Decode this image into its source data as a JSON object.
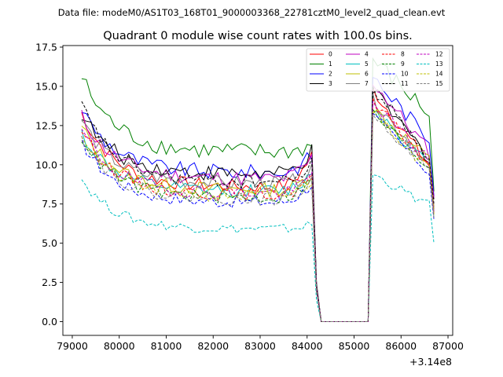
{
  "chart_data": {
    "type": "line",
    "suptitle": "Data file: modeM0/AS1T03_168T01_9000003368_22781cztM0_level2_quad_clean.evt",
    "title": "Quadrant 0 module wise count rates with 100.0s bins.",
    "xlabel": "",
    "ylabel": "",
    "x_offset_label": "+3.14e8",
    "xlim": [
      78800,
      87100
    ],
    "ylim": [
      -0.875,
      17.6
    ],
    "x_ticks": [
      79000,
      80000,
      81000,
      82000,
      83000,
      84000,
      85000,
      86000,
      87000
    ],
    "x_tick_labels": [
      "79000",
      "80000",
      "81000",
      "82000",
      "83000",
      "84000",
      "85000",
      "86000",
      "87000"
    ],
    "y_ticks": [
      0,
      2.5,
      5,
      7.5,
      10,
      12.5,
      15,
      17.5
    ],
    "y_tick_labels": [
      "0.0",
      "2.5",
      "5.0",
      "7.5",
      "10.0",
      "12.5",
      "15.0",
      "17.5"
    ],
    "bin_width_s": 100,
    "segments": [
      {
        "x_start": 79200,
        "x_end": 84100
      },
      {
        "x_start": 84200,
        "x_end": 85300
      },
      {
        "x_start": 85400,
        "x_end": 86700
      }
    ],
    "legend_position": "top-right",
    "series": [
      {
        "name": "0",
        "color": "#ff0000",
        "dash": "solid",
        "start": 13.3,
        "level": 8.6,
        "gap_end": 10.6,
        "post_start": 14.8,
        "post_end": 9.9,
        "end": 7.3
      },
      {
        "name": "1",
        "color": "#008000",
        "dash": "solid",
        "start": 15.6,
        "level": 10.8,
        "gap_end": 11.2,
        "post_start": 16.7,
        "post_end": 13.2,
        "end": 8.3
      },
      {
        "name": "2",
        "color": "#0000ff",
        "dash": "solid",
        "start": 13.6,
        "level": 9.5,
        "gap_end": 10.6,
        "post_start": 15.6,
        "post_end": 11.6,
        "end": 8.0
      },
      {
        "name": "3",
        "color": "#000000",
        "dash": "solid",
        "start": 13.3,
        "level": 9.4,
        "gap_end": 10.8,
        "post_start": 14.7,
        "post_end": 10.4,
        "end": 7.8
      },
      {
        "name": "4",
        "color": "#bf00bf",
        "dash": "solid",
        "start": 13.1,
        "level": 9.1,
        "gap_end": 10.4,
        "post_start": 15.3,
        "post_end": 10.8,
        "end": 7.9
      },
      {
        "name": "5",
        "color": "#00bfbf",
        "dash": "solid",
        "start": 12.0,
        "level": 8.3,
        "gap_end": 9.4,
        "post_start": 13.7,
        "post_end": 9.9,
        "end": 7.2
      },
      {
        "name": "6",
        "color": "#bfbf00",
        "dash": "solid",
        "start": 12.4,
        "level": 8.4,
        "gap_end": 9.4,
        "post_start": 13.6,
        "post_end": 10.3,
        "end": 7.2
      },
      {
        "name": "7",
        "color": "#808080",
        "dash": "solid",
        "start": 12.9,
        "level": 8.8,
        "gap_end": 9.6,
        "post_start": 14.1,
        "post_end": 10.1,
        "end": 7.0
      },
      {
        "name": "8",
        "color": "#ff0000",
        "dash": "dashed",
        "start": 12.3,
        "level": 8.1,
        "gap_end": 9.2,
        "post_start": 13.9,
        "post_end": 10.0,
        "end": 6.8
      },
      {
        "name": "9",
        "color": "#008000",
        "dash": "dashed",
        "start": 11.8,
        "level": 7.9,
        "gap_end": 9.0,
        "post_start": 13.3,
        "post_end": 9.8,
        "end": 6.7
      },
      {
        "name": "10",
        "color": "#0000ff",
        "dash": "dashed",
        "start": 11.5,
        "level": 7.6,
        "gap_end": 8.8,
        "post_start": 13.1,
        "post_end": 9.5,
        "end": 6.5
      },
      {
        "name": "11",
        "color": "#000000",
        "dash": "dashed",
        "start": 13.8,
        "level": 8.9,
        "gap_end": 10.0,
        "post_start": 14.9,
        "post_end": 10.6,
        "end": 7.5
      },
      {
        "name": "12",
        "color": "#bf00bf",
        "dash": "dashed",
        "start": 12.2,
        "level": 8.2,
        "gap_end": 9.3,
        "post_start": 14.0,
        "post_end": 10.2,
        "end": 7.0
      },
      {
        "name": "13",
        "color": "#00bfbf",
        "dash": "dashed",
        "start": 9.1,
        "level": 5.9,
        "gap_end": 6.2,
        "post_start": 9.4,
        "post_end": 7.4,
        "end": 5.0
      },
      {
        "name": "14",
        "color": "#bfbf00",
        "dash": "dashed",
        "start": 12.0,
        "level": 8.0,
        "gap_end": 9.0,
        "post_start": 13.5,
        "post_end": 9.7,
        "end": 6.8
      },
      {
        "name": "15",
        "color": "#808080",
        "dash": "dashed",
        "start": 11.9,
        "level": 7.8,
        "gap_end": 8.9,
        "post_start": 13.4,
        "post_end": 9.6,
        "end": 6.6
      }
    ]
  }
}
